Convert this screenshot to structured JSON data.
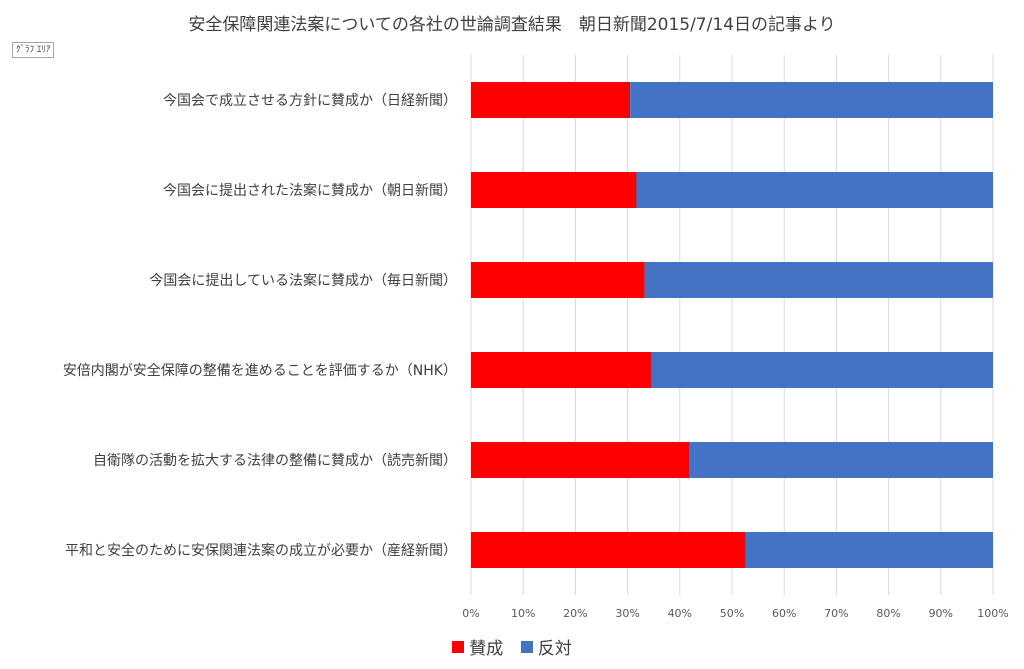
{
  "chart_data": {
    "type": "bar",
    "orientation": "horizontal",
    "stacked": true,
    "title": "安全保障関連法案についての各社の世論調査結果　朝日新聞2015/7/14日の記事より",
    "area_tag": "ｸﾞﾗﾌ ｴﾘｱ",
    "categories": [
      "今国会で成立させる方針に賛成か（日経新聞）",
      "今国会に提出された法案に賛成か（朝日新聞）",
      "今国会に提出している法案に賛成か（毎日新聞）",
      "安倍内閣が安全保障の整備を進めることを評価するか（NHK）",
      "自衛隊の活動を拡大する法律の整備に賛成か（読売新聞）",
      "平和と安全のために安保関連法案の成立が必要か（産経新聞）"
    ],
    "series": [
      {
        "name": "賛成",
        "color": "#ff0000",
        "values": [
          30.5,
          31.7,
          33.3,
          34.6,
          41.9,
          52.6
        ]
      },
      {
        "name": "反対",
        "color": "#4472c4",
        "values": [
          69.5,
          68.3,
          66.7,
          65.4,
          58.1,
          47.4
        ]
      }
    ],
    "x_ticks": [
      "0%",
      "10%",
      "20%",
      "30%",
      "40%",
      "50%",
      "60%",
      "70%",
      "80%",
      "90%",
      "100%"
    ],
    "xlim": [
      0,
      100
    ],
    "grid": true,
    "legend_position": "bottom"
  }
}
